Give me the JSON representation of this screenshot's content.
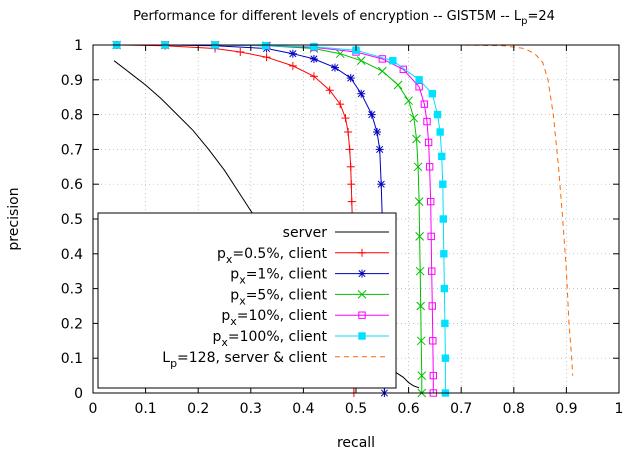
{
  "chart_data": {
    "type": "line",
    "title": "Performance for different levels of encryption -- GIST5M -- L",
    "title_sub": "p",
    "title_suffix": "=24",
    "xlabel": "recall",
    "ylabel": "precision",
    "xlim": [
      0,
      1
    ],
    "ylim": [
      0,
      1
    ],
    "xticks": [
      0,
      0.1,
      0.2,
      0.3,
      0.4,
      0.5,
      0.6,
      0.7,
      0.8,
      0.9,
      1
    ],
    "yticks": [
      0,
      0.1,
      0.2,
      0.3,
      0.4,
      0.5,
      0.6,
      0.7,
      0.8,
      0.9,
      1
    ],
    "xtick_labels": [
      "0",
      "0.1",
      "0.2",
      "0.3",
      "0.4",
      "0.5",
      "0.6",
      "0.7",
      "0.8",
      "0.9",
      "1"
    ],
    "ytick_labels": [
      "0",
      "0.1",
      "0.2",
      "0.3",
      "0.4",
      "0.5",
      "0.6",
      "0.7",
      "0.8",
      "0.9",
      "1"
    ],
    "grid": true,
    "legend_position": "bottom-left",
    "series": [
      {
        "label_pre": "server",
        "label_sub": "",
        "label_post": "",
        "color": "#000000",
        "dash": "solid",
        "marker": "none",
        "points": [
          [
            0.04,
            0.955
          ],
          [
            0.07,
            0.92
          ],
          [
            0.1,
            0.885
          ],
          [
            0.13,
            0.845
          ],
          [
            0.16,
            0.8
          ],
          [
            0.19,
            0.755
          ],
          [
            0.22,
            0.7
          ],
          [
            0.25,
            0.64
          ],
          [
            0.28,
            0.57
          ],
          [
            0.31,
            0.5
          ],
          [
            0.34,
            0.43
          ],
          [
            0.37,
            0.36
          ],
          [
            0.4,
            0.29
          ],
          [
            0.43,
            0.23
          ],
          [
            0.46,
            0.18
          ],
          [
            0.49,
            0.14
          ],
          [
            0.52,
            0.11
          ],
          [
            0.55,
            0.085
          ],
          [
            0.57,
            0.065
          ],
          [
            0.59,
            0.045
          ],
          [
            0.6,
            0.03
          ],
          [
            0.61,
            0.02
          ],
          [
            0.62,
            0.015
          ]
        ]
      },
      {
        "label_pre": "p",
        "label_sub": "x",
        "label_post": "=0.5%, client",
        "color": "#ff0000",
        "dash": "solid",
        "marker": "plus",
        "points": [
          [
            0.045,
            1.0
          ],
          [
            0.137,
            0.998
          ],
          [
            0.232,
            0.99
          ],
          [
            0.28,
            0.98
          ],
          [
            0.33,
            0.965
          ],
          [
            0.38,
            0.94
          ],
          [
            0.42,
            0.91
          ],
          [
            0.45,
            0.87
          ],
          [
            0.47,
            0.83
          ],
          [
            0.48,
            0.79
          ],
          [
            0.485,
            0.75
          ],
          [
            0.488,
            0.7
          ],
          [
            0.49,
            0.65
          ],
          [
            0.491,
            0.6
          ],
          [
            0.492,
            0.55
          ],
          [
            0.493,
            0.5
          ],
          [
            0.494,
            0.4
          ],
          [
            0.495,
            0.3
          ],
          [
            0.495,
            0.2
          ],
          [
            0.496,
            0.1
          ],
          [
            0.496,
            0.0
          ]
        ]
      },
      {
        "label_pre": "p",
        "label_sub": "x",
        "label_post": "=1%, client",
        "color": "#0000c0",
        "dash": "solid",
        "marker": "star",
        "points": [
          [
            0.045,
            1.0
          ],
          [
            0.137,
            1.0
          ],
          [
            0.232,
            0.998
          ],
          [
            0.33,
            0.99
          ],
          [
            0.38,
            0.975
          ],
          [
            0.42,
            0.96
          ],
          [
            0.46,
            0.935
          ],
          [
            0.49,
            0.905
          ],
          [
            0.51,
            0.86
          ],
          [
            0.53,
            0.8
          ],
          [
            0.54,
            0.75
          ],
          [
            0.545,
            0.7
          ],
          [
            0.548,
            0.6
          ],
          [
            0.55,
            0.5
          ],
          [
            0.551,
            0.4
          ],
          [
            0.552,
            0.3
          ],
          [
            0.553,
            0.2
          ],
          [
            0.553,
            0.1
          ],
          [
            0.554,
            0.0
          ]
        ]
      },
      {
        "label_pre": "p",
        "label_sub": "x",
        "label_post": "=5%, client",
        "color": "#00c000",
        "dash": "solid",
        "marker": "cross",
        "points": [
          [
            0.045,
            1.0
          ],
          [
            0.137,
            1.0
          ],
          [
            0.232,
            1.0
          ],
          [
            0.33,
            0.998
          ],
          [
            0.42,
            0.99
          ],
          [
            0.47,
            0.975
          ],
          [
            0.51,
            0.955
          ],
          [
            0.55,
            0.925
          ],
          [
            0.58,
            0.885
          ],
          [
            0.6,
            0.84
          ],
          [
            0.61,
            0.79
          ],
          [
            0.615,
            0.73
          ],
          [
            0.618,
            0.65
          ],
          [
            0.62,
            0.55
          ],
          [
            0.621,
            0.45
          ],
          [
            0.622,
            0.35
          ],
          [
            0.623,
            0.25
          ],
          [
            0.624,
            0.15
          ],
          [
            0.625,
            0.05
          ],
          [
            0.625,
            0.0
          ]
        ]
      },
      {
        "label_pre": "p",
        "label_sub": "x",
        "label_post": "=10%, client",
        "color": "#ff00ff",
        "dash": "solid",
        "marker": "square",
        "points": [
          [
            0.045,
            1.0
          ],
          [
            0.137,
            1.0
          ],
          [
            0.232,
            1.0
          ],
          [
            0.33,
            0.998
          ],
          [
            0.42,
            0.993
          ],
          [
            0.5,
            0.98
          ],
          [
            0.55,
            0.96
          ],
          [
            0.59,
            0.93
          ],
          [
            0.62,
            0.88
          ],
          [
            0.63,
            0.83
          ],
          [
            0.635,
            0.78
          ],
          [
            0.638,
            0.72
          ],
          [
            0.64,
            0.65
          ],
          [
            0.642,
            0.55
          ],
          [
            0.643,
            0.45
          ],
          [
            0.644,
            0.35
          ],
          [
            0.645,
            0.25
          ],
          [
            0.646,
            0.15
          ],
          [
            0.647,
            0.05
          ],
          [
            0.647,
            0.0
          ]
        ]
      },
      {
        "label_pre": "p",
        "label_sub": "x",
        "label_post": "=100%, client",
        "color": "#00e0ff",
        "dash": "solid",
        "marker": "filled-square",
        "points": [
          [
            0.045,
            1.0
          ],
          [
            0.137,
            1.0
          ],
          [
            0.232,
            1.0
          ],
          [
            0.328,
            0.998
          ],
          [
            0.42,
            0.995
          ],
          [
            0.5,
            0.985
          ],
          [
            0.57,
            0.955
          ],
          [
            0.62,
            0.9
          ],
          [
            0.645,
            0.86
          ],
          [
            0.655,
            0.8
          ],
          [
            0.66,
            0.75
          ],
          [
            0.663,
            0.68
          ],
          [
            0.665,
            0.6
          ],
          [
            0.666,
            0.5
          ],
          [
            0.667,
            0.4
          ],
          [
            0.668,
            0.3
          ],
          [
            0.669,
            0.2
          ],
          [
            0.67,
            0.1
          ],
          [
            0.67,
            0.0
          ]
        ]
      },
      {
        "label_pre": "L",
        "label_sub": "p",
        "label_post": "=128, server & client",
        "color": "#ff6600",
        "dash": "dashed",
        "marker": "none",
        "points": [
          [
            0.04,
            1.0
          ],
          [
            0.4,
            1.0
          ],
          [
            0.6,
            1.0
          ],
          [
            0.7,
            1.0
          ],
          [
            0.78,
            0.998
          ],
          [
            0.82,
            0.99
          ],
          [
            0.84,
            0.975
          ],
          [
            0.855,
            0.95
          ],
          [
            0.865,
            0.9
          ],
          [
            0.875,
            0.8
          ],
          [
            0.885,
            0.65
          ],
          [
            0.893,
            0.5
          ],
          [
            0.9,
            0.35
          ],
          [
            0.905,
            0.2
          ],
          [
            0.91,
            0.1
          ],
          [
            0.912,
            0.05
          ]
        ]
      }
    ]
  }
}
